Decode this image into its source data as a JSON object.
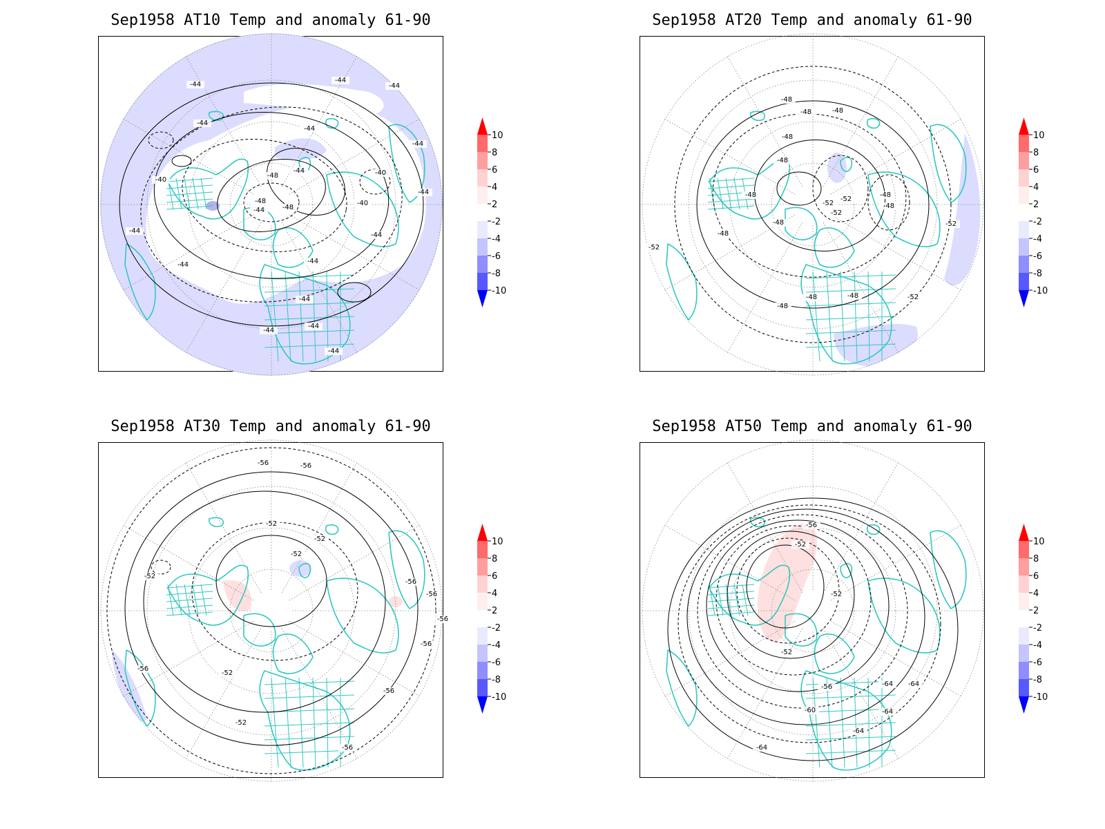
{
  "panels": [
    {
      "title": "Sep1958 AT10 Temp and anomaly 61-90",
      "contour_labels": [
        "-44",
        "-44",
        "-44",
        "-44",
        "-44",
        "-40",
        "-44",
        "-40",
        "-48",
        "-48",
        "-44",
        "-48",
        "-44",
        "-40",
        "-44",
        "-44",
        "-44",
        "-44",
        "-44",
        "-44",
        "-44",
        "-44",
        "-44"
      ]
    },
    {
      "title": "Sep1958 AT20 Temp and anomaly 61-90",
      "contour_labels": [
        "-48",
        "-48",
        "-48",
        "-48",
        "-48",
        "-48",
        "-52",
        "-52",
        "-52",
        "-48",
        "-48",
        "-52",
        "-52",
        "-48",
        "-48",
        "-48",
        "-48",
        "-52",
        "-48",
        "-48"
      ]
    },
    {
      "title": "Sep1958 AT30 Temp and anomaly 61-90",
      "contour_labels": [
        "-56",
        "-56",
        "-52",
        "-52",
        "-52",
        "-52",
        "-56",
        "-56",
        "-56",
        "-56",
        "-56",
        "-52",
        "-52",
        "-56",
        "-56"
      ]
    },
    {
      "title": "Sep1958 AT50 Temp and anomaly 61-90",
      "contour_labels": [
        "-56",
        "-52",
        "-52",
        "-52",
        "-56",
        "-60",
        "-64",
        "-64",
        "-64",
        "-64",
        "-64"
      ]
    }
  ],
  "colorbar": {
    "levels": [
      "10",
      "8",
      "6",
      "4",
      "2",
      "-2",
      "-4",
      "-6",
      "-8",
      "-10"
    ],
    "colors": {
      "top_arrow": "#ff0000",
      "segments": [
        "#ff2a2a",
        "#ff6a6a",
        "#ff9e9e",
        "#ffd2d2",
        "#ffeeee",
        "#ffffff",
        "#eaeaff",
        "#c4c4ff",
        "#8e8eff",
        "#5858ff",
        "#2020ff"
      ],
      "bottom_arrow": "#0000ff"
    }
  },
  "map_style": {
    "coast_color": "#30c8c0",
    "neg_anomaly_fill": "#dcdcff",
    "neg_anomaly_strong": "#b4b4f0",
    "pos_anomaly_fill": "#ffe0e0",
    "contour_color": "#000000",
    "grid_color": "#888888"
  }
}
